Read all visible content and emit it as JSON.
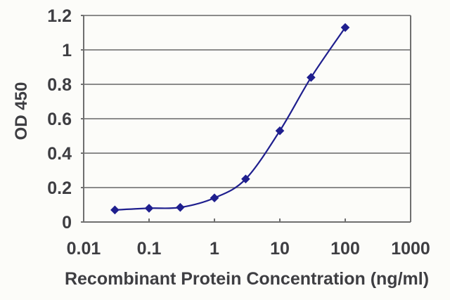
{
  "chart_data": {
    "type": "line",
    "title": "",
    "xlabel": "Recombinant Protein Concentration (ng/ml)",
    "ylabel": "OD 450",
    "x_scale": "log",
    "x": [
      0.03,
      0.1,
      0.3,
      1,
      3,
      10,
      30,
      100
    ],
    "y": [
      0.07,
      0.08,
      0.085,
      0.14,
      0.25,
      0.53,
      0.84,
      1.13
    ],
    "xlim": [
      0.01,
      1000
    ],
    "ylim": [
      0,
      1.2
    ],
    "x_tick_labels": [
      "0.01",
      "0.1",
      "1",
      "10",
      "100",
      "1000"
    ],
    "x_tick_values": [
      0.01,
      0.1,
      1,
      10,
      100,
      1000
    ],
    "y_tick_labels": [
      "0",
      "0.2",
      "0.4",
      "0.6",
      "0.8",
      "1",
      "1.2"
    ],
    "y_tick_values": [
      0,
      0.2,
      0.4,
      0.6,
      0.8,
      1,
      1.2
    ],
    "grid": "horizontal",
    "legend": "none",
    "marker": "diamond",
    "line_smooth": true,
    "colors": {
      "line": "#1f1f8e",
      "grid": "#7b7b7b",
      "axis": "#6f6f6f",
      "text": "#3e3e42",
      "background": "#fcfcf9"
    }
  }
}
